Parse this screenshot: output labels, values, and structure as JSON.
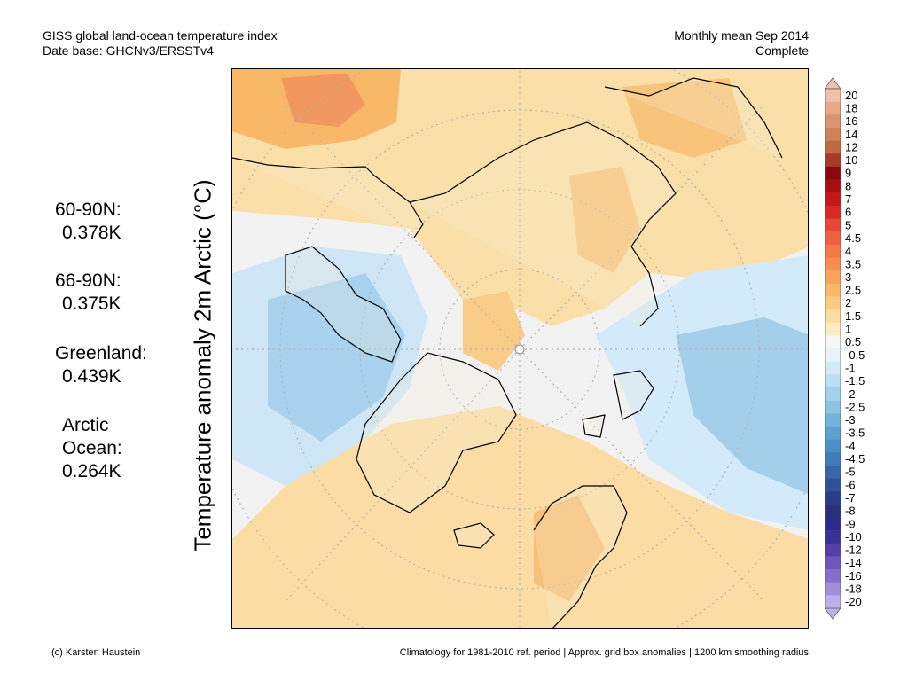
{
  "header": {
    "title_line1": "GISS global land-ocean temperature index",
    "title_line2": "Date base: GHCNv3/ERSSTv4",
    "right_line1": "Monthly mean Sep 2014",
    "right_line2": "Complete"
  },
  "stats": [
    {
      "region": "60-90N:",
      "value": "0.378K"
    },
    {
      "region": "66-90N:",
      "value": "0.375K"
    },
    {
      "region": "Greenland:",
      "value": "0.439K"
    },
    {
      "region": "Arctic\nOcean:",
      "value": "0.264K"
    }
  ],
  "map": {
    "projection": "north-polar-stereographic",
    "axis_label": "Temperature anomaly 2m Arctic (°C)"
  },
  "colorbar": {
    "labels": [
      "20",
      "18",
      "16",
      "14",
      "12",
      "10",
      "9",
      "8",
      "7",
      "6",
      "5",
      "4.5",
      "4",
      "3.5",
      "3",
      "2.5",
      "2",
      "1.5",
      "1",
      "0.5",
      "-0.5",
      "-1",
      "-1.5",
      "-2",
      "-2.5",
      "-3",
      "-3.5",
      "-4",
      "-4.5",
      "-5",
      "-6",
      "-7",
      "-8",
      "-9",
      "-10",
      "-12",
      "-14",
      "-16",
      "-18",
      "-20"
    ],
    "colors": [
      "#f0c0a8",
      "#e6a888",
      "#dc9470",
      "#cf8058",
      "#c06a44",
      "#a83a28",
      "#8a0a0a",
      "#a81010",
      "#c41818",
      "#d82828",
      "#e84838",
      "#f06040",
      "#f47848",
      "#f68e50",
      "#f6a45c",
      "#f8b868",
      "#facc80",
      "#fbdc9a",
      "#fcecc0",
      "#f6f6f6",
      "#e6f2fc",
      "#d2eafa",
      "#bcdef4",
      "#a4d0ec",
      "#8cc2e4",
      "#74b2dc",
      "#5ea0d2",
      "#4c8ec8",
      "#407cbc",
      "#3866ac",
      "#30509c",
      "#2a3c8c",
      "#28307e",
      "#302a8c",
      "#3c3098",
      "#5440a8",
      "#6c58bc",
      "#8470cc",
      "#a090dc",
      "#bcb0ec"
    ]
  },
  "footer": {
    "credit": "(c) Karsten Haustein",
    "note": "Climatology for 1981-2010 ref. period | Approx. grid box anomalies | 1200 km smoothing radius"
  }
}
